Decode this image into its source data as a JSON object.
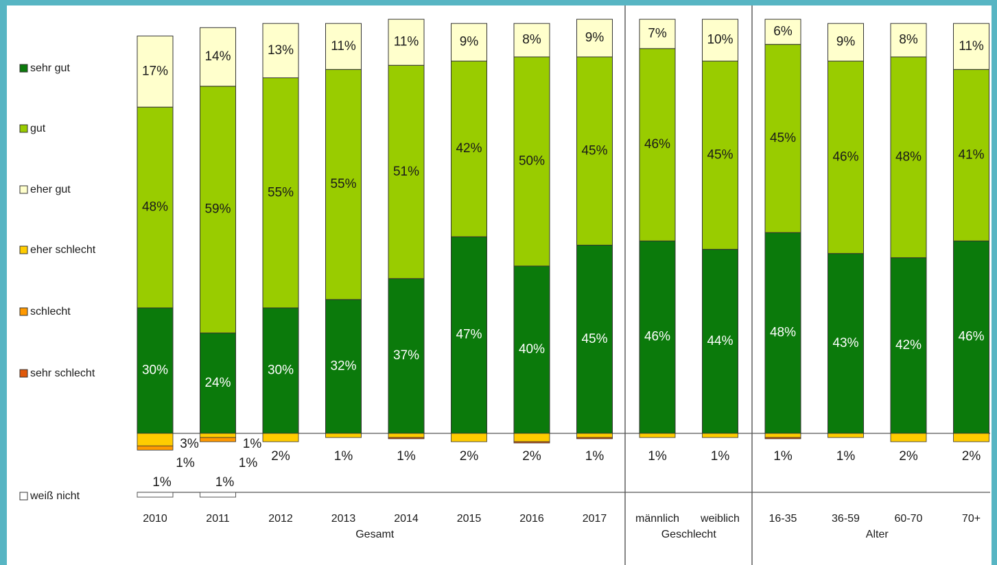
{
  "chart_data": {
    "type": "bar",
    "stacked": true,
    "groups": [
      {
        "name": "Gesamt",
        "categories": [
          "2010",
          "2011",
          "2012",
          "2013",
          "2014",
          "2015",
          "2016",
          "2017"
        ]
      },
      {
        "name": "Geschlecht",
        "categories": [
          "männlich",
          "weiblich"
        ]
      },
      {
        "name": "Alter",
        "categories": [
          "16-35",
          "36-59",
          "60-70",
          "70+"
        ]
      }
    ],
    "series": [
      {
        "name": "sehr gut",
        "color": "#0b7a0b",
        "values": [
          30,
          24,
          30,
          32,
          37,
          47,
          40,
          45,
          46,
          44,
          48,
          43,
          42,
          46
        ],
        "value_labels": [
          "30%",
          "24%",
          "30%",
          "32%",
          "37%",
          "47%",
          "40%",
          "45%",
          "46%",
          "44%",
          "48%",
          "43%",
          "42%",
          "46%"
        ]
      },
      {
        "name": "gut",
        "color": "#99cc00",
        "values": [
          48,
          59,
          55,
          55,
          51,
          42,
          50,
          45,
          46,
          45,
          45,
          46,
          48,
          41
        ],
        "value_labels": [
          "48%",
          "59%",
          "55%",
          "55%",
          "51%",
          "42%",
          "50%",
          "45%",
          "46%",
          "45%",
          "45%",
          "46%",
          "48%",
          "41%"
        ]
      },
      {
        "name": "eher gut",
        "color": "#ffffcc",
        "values": [
          17,
          14,
          13,
          11,
          11,
          9,
          8,
          9,
          7,
          10,
          6,
          9,
          8,
          11
        ],
        "value_labels": [
          "17%",
          "14%",
          "13%",
          "11%",
          "11%",
          "9%",
          "8%",
          "9%",
          "7%",
          "10%",
          "6%",
          "9%",
          "8%",
          "11%"
        ]
      },
      {
        "name": "eher schlecht",
        "color": "#ffcc00",
        "values": [
          3,
          1,
          2,
          1,
          1,
          2,
          2,
          1,
          1,
          1,
          1,
          1,
          2,
          2
        ],
        "value_labels": [
          "3%",
          "1%",
          "2%",
          "1%",
          "1%",
          "2%",
          "2%",
          "1%",
          "1%",
          "1%",
          "1%",
          "1%",
          "2%",
          "2%"
        ]
      },
      {
        "name": "schlecht",
        "color": "#ff9900",
        "values": [
          1,
          1,
          0,
          0,
          0,
          0,
          0,
          0,
          0,
          0,
          0,
          0,
          0,
          0
        ],
        "value_labels": [
          "1%",
          "1%",
          null,
          null,
          null,
          null,
          null,
          null,
          null,
          null,
          null,
          null,
          null,
          null
        ]
      },
      {
        "name": "sehr schlecht",
        "color": "#e0580a",
        "values": [
          0,
          0,
          0,
          0,
          0.3,
          0,
          0.3,
          0.3,
          0,
          0,
          0.3,
          0,
          0,
          0
        ],
        "value_labels": [
          null,
          null,
          null,
          null,
          null,
          null,
          null,
          null,
          null,
          null,
          null,
          null,
          null,
          null
        ]
      },
      {
        "name": "weiß nicht",
        "color": "#ffffff",
        "values": [
          1,
          1,
          null,
          null,
          null,
          null,
          null,
          null,
          null,
          null,
          null,
          null,
          null,
          null
        ],
        "value_labels": [
          "1%",
          "1%",
          null,
          null,
          null,
          null,
          null,
          null,
          null,
          null,
          null,
          null,
          null,
          null
        ]
      }
    ]
  }
}
